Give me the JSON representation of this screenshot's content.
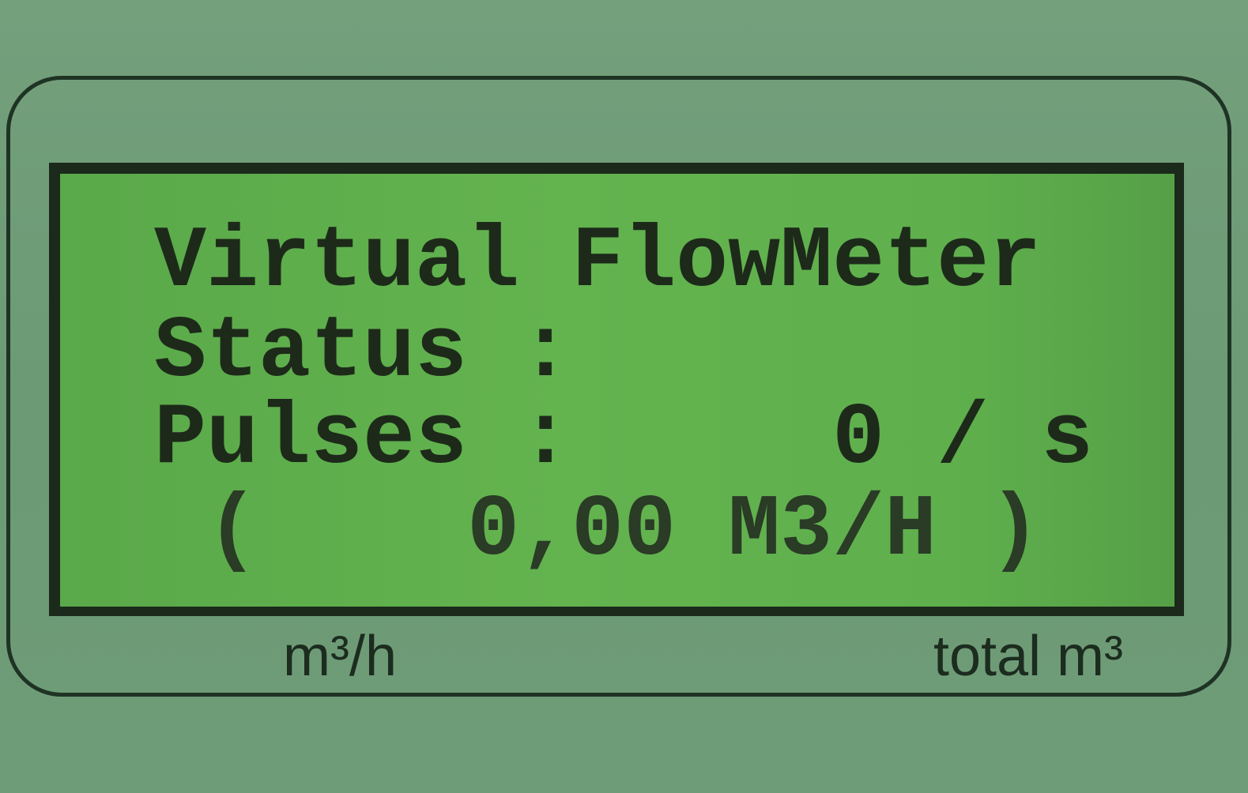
{
  "display": {
    "lines": [
      "Virtual FlowMeter",
      "Status :",
      "Pulses :     0 / s",
      " (    0,00 M3/H )"
    ]
  },
  "labels": {
    "left": "m³/h",
    "right": "total m³"
  }
}
